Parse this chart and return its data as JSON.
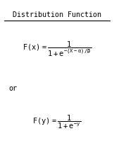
{
  "title": "Distribution Function",
  "background_color": "#ffffff",
  "text_color": "#000000",
  "figsize": [
    1.62,
    2.16
  ],
  "dpi": 100,
  "title_fontsize": 7.2,
  "formula_fontsize": 7.5,
  "or_fontsize": 7.2
}
